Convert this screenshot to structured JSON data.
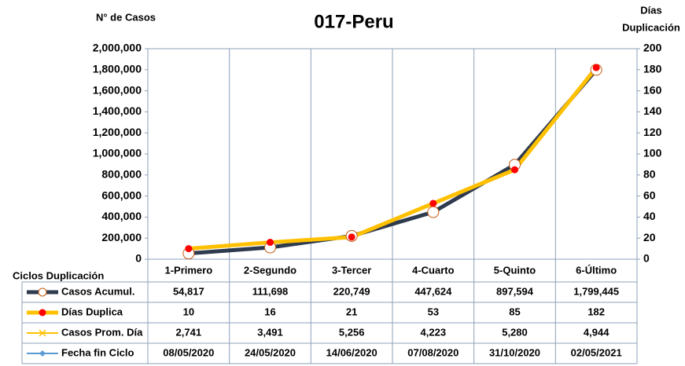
{
  "chart_data": {
    "type": "line",
    "title": "017-Peru",
    "ylabel": "N° de Casos",
    "y2label": [
      "Días",
      "Duplicación"
    ],
    "table_header": "Ciclos Duplicación",
    "categories": [
      "1-Primero",
      "2-Segundo",
      "3-Tercer",
      "4-Cuarto",
      "5-Quinto",
      "6-Último"
    ],
    "ylim": [
      0,
      2000000
    ],
    "yticks": [
      0,
      {
        "value": 200000,
        "label": "200,000"
      },
      {
        "value": 400000,
        "label": "400,000"
      },
      {
        "value": 600000,
        "label": "600,000"
      },
      {
        "value": 800000,
        "label": "800,000"
      },
      {
        "value": 1000000,
        "label": "1,000,000"
      },
      {
        "value": 1200000,
        "label": "1,200,000"
      },
      {
        "value": 1400000,
        "label": "1,400,000"
      },
      {
        "value": 1600000,
        "label": "1,600,000"
      },
      {
        "value": 1800000,
        "label": "1,800,000"
      },
      {
        "value": 2000000,
        "label": "2,000,000"
      }
    ],
    "y2lim": [
      0,
      200
    ],
    "y2ticks": [
      0,
      20,
      40,
      60,
      80,
      100,
      120,
      140,
      160,
      180,
      200
    ],
    "series": [
      {
        "name": "Casos Acumul.",
        "color": "#2e3a4e",
        "marker": "circle",
        "axis": "y",
        "plotted": true,
        "values": [
          54817,
          111698,
          220749,
          447624,
          897594,
          1799445
        ],
        "value_labels": [
          "54,817",
          "111,698",
          "220,749",
          "447,624",
          "897,594",
          "1,799,445"
        ]
      },
      {
        "name": "Días Duplica",
        "color": "#ffc000",
        "marker": "dot",
        "axis": "y2",
        "plotted": true,
        "values": [
          10,
          16,
          21,
          53,
          85,
          182
        ]
      },
      {
        "name": "Casos Prom. Día",
        "color": "#ffc000",
        "marker": "x",
        "axis": "y",
        "plotted": false,
        "values": [
          2741,
          3491,
          5256,
          4223,
          5280,
          4944
        ],
        "value_labels": [
          "2,741",
          "3,491",
          "5,256",
          "4,223",
          "5,280",
          "4,944"
        ]
      },
      {
        "name": "Fecha fin Ciclo",
        "color": "#5b9bd5",
        "marker": "diamond",
        "axis": "y",
        "plotted": false,
        "values": [
          "08/05/2020",
          "24/05/2020",
          "14/06/2020",
          "07/08/2020",
          "31/10/2020",
          "02/05/2021"
        ]
      }
    ]
  }
}
